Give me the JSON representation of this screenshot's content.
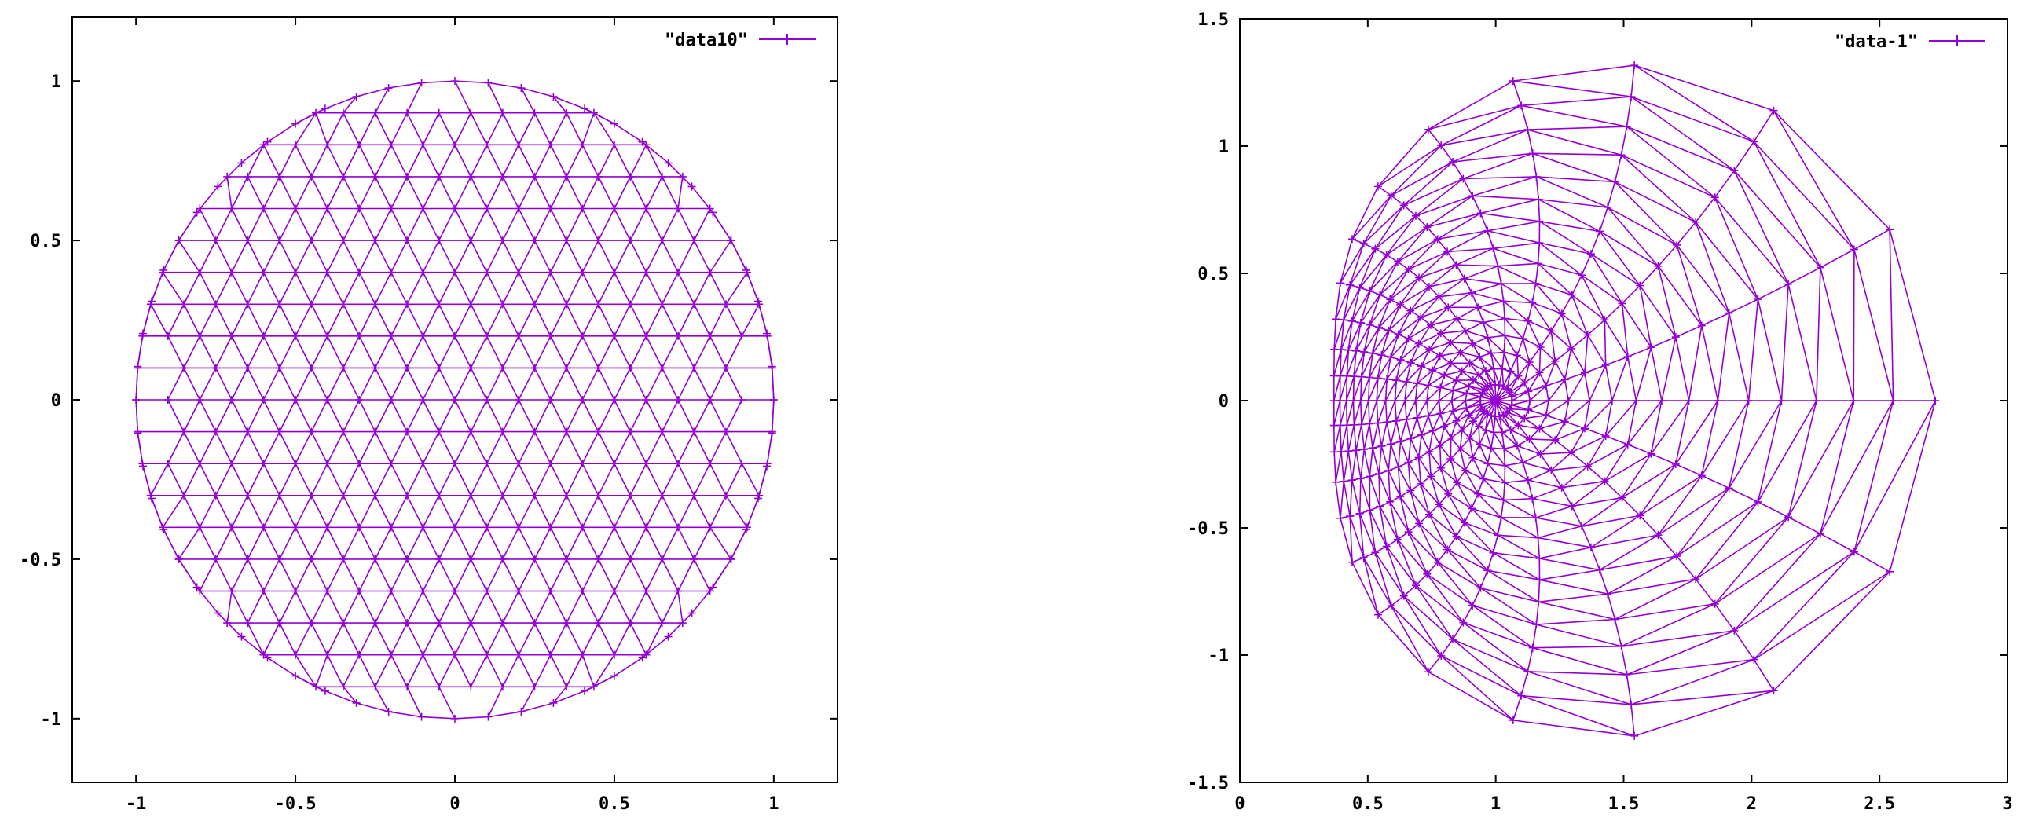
{
  "chart_data": [
    {
      "type": "line",
      "title": "",
      "xlabel": "",
      "ylabel": "",
      "xlim": [
        -1.2,
        1.2
      ],
      "ylim": [
        -1.2,
        1.2
      ],
      "x_ticks": [
        {
          "value": -1,
          "label": "-1"
        },
        {
          "value": -0.5,
          "label": "-0.5"
        },
        {
          "value": 0,
          "label": "0"
        },
        {
          "value": 0.5,
          "label": "0.5"
        },
        {
          "value": 1,
          "label": "1"
        }
      ],
      "y_ticks": [
        {
          "value": -1,
          "label": "-1"
        },
        {
          "value": -0.5,
          "label": "-0.5"
        },
        {
          "value": 0,
          "label": "0"
        },
        {
          "value": 0.5,
          "label": "0.5"
        },
        {
          "value": 1,
          "label": "1"
        }
      ],
      "grid": false,
      "legend": {
        "position": "top-right"
      },
      "series": [
        {
          "name": "\"data10\"",
          "color": "#9400d3",
          "marker": "plus",
          "mesh": {
            "kind": "triangulated-disk",
            "center": [
              0,
              0
            ],
            "radius": 1,
            "boundary_points": 60,
            "interior_row_spacing": 0.1,
            "interior_point_spacing": 0.1
          }
        }
      ]
    },
    {
      "type": "line",
      "title": "",
      "xlabel": "",
      "ylabel": "",
      "xlim": [
        0,
        3
      ],
      "ylim": [
        -1.5,
        1.5
      ],
      "x_ticks": [
        {
          "value": 0,
          "label": "0"
        },
        {
          "value": 0.5,
          "label": "0.5"
        },
        {
          "value": 1,
          "label": "1"
        },
        {
          "value": 1.5,
          "label": "1.5"
        },
        {
          "value": 2,
          "label": "2"
        },
        {
          "value": 2.5,
          "label": "2.5"
        },
        {
          "value": 3,
          "label": "3"
        }
      ],
      "y_ticks": [
        {
          "value": -1.5,
          "label": "-1.5"
        },
        {
          "value": -1,
          "label": "-1"
        },
        {
          "value": -0.5,
          "label": "-0.5"
        },
        {
          "value": 0,
          "label": "0"
        },
        {
          "value": 0.5,
          "label": "0.5"
        },
        {
          "value": 1,
          "label": "1"
        },
        {
          "value": 1.5,
          "label": "1.5"
        }
      ],
      "grid": false,
      "legend": {
        "position": "top-right"
      },
      "series": [
        {
          "name": "\"data-1\"",
          "color": "#9400d3",
          "marker": "plus",
          "mesh": {
            "kind": "polar-grid",
            "x_range": [
              0.37,
              2.72
            ],
            "y_extent": 1.32,
            "radial_lines": 13,
            "angular_rings": 16
          }
        }
      ]
    }
  ]
}
